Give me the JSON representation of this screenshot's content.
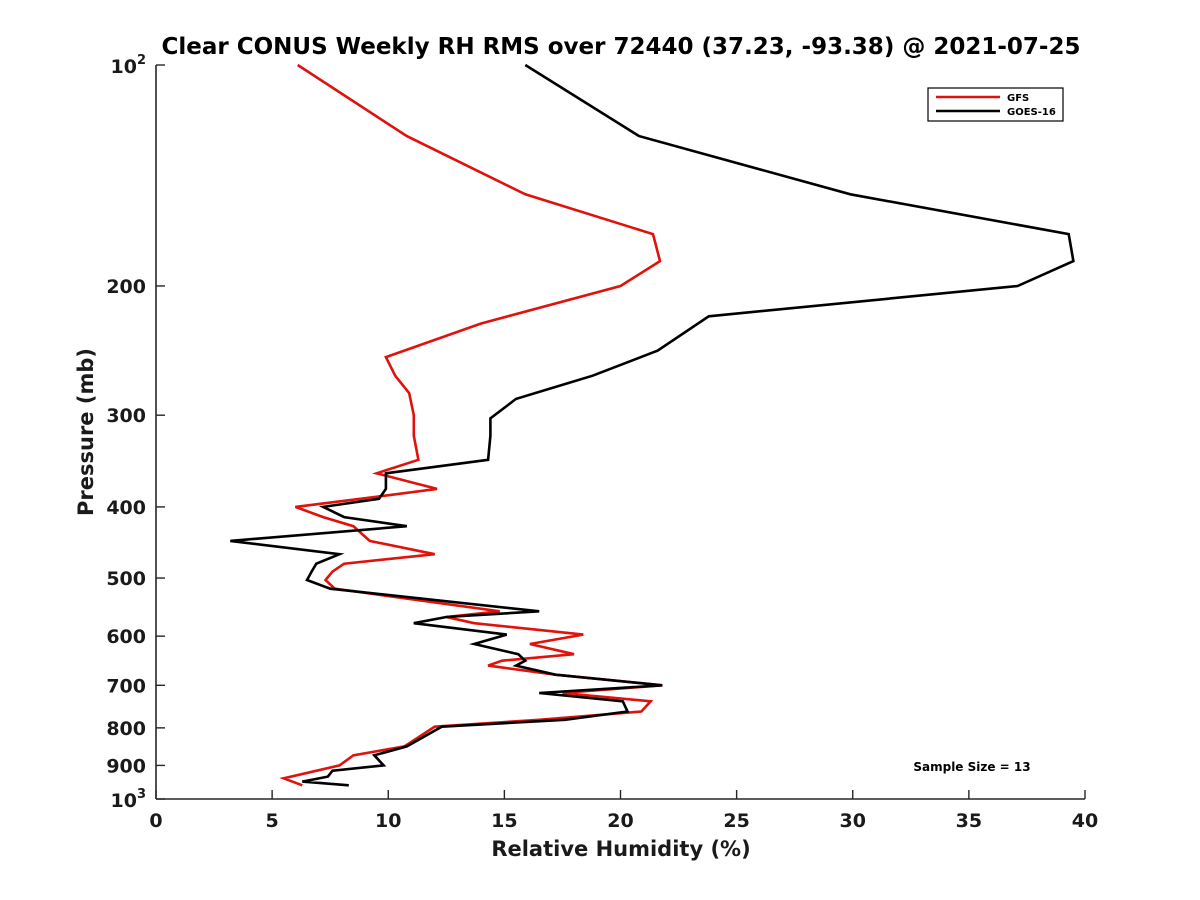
{
  "chart_data": {
    "type": "line",
    "title": "Clear CONUS Weekly RH RMS over 72440 (37.23, -93.38) @ 2021-07-25",
    "xlabel": "Relative Humidity (%)",
    "ylabel": "Pressure (mb)",
    "xlim": [
      0,
      40
    ],
    "ylim": [
      100,
      1000
    ],
    "y_scale": "log",
    "y_reversed": true,
    "x_ticks": [
      0,
      5,
      10,
      15,
      20,
      25,
      30,
      35,
      40
    ],
    "x_tick_labels": [
      "0",
      "5",
      "10",
      "15",
      "20",
      "25",
      "30",
      "35",
      "40"
    ],
    "y_ticks": [
      200,
      300,
      400,
      500,
      600,
      700,
      800,
      900
    ],
    "y_tick_labels": [
      "200",
      "300",
      "400",
      "500",
      "600",
      "700",
      "800",
      "900"
    ],
    "y_end_ticks": [
      {
        "value": 100,
        "base": "10",
        "exp": "2"
      },
      {
        "value": 1000,
        "base": "10",
        "exp": "3"
      }
    ],
    "grid": false,
    "legend_position": "top-right",
    "series": [
      {
        "name": "GFS",
        "color": "#e0120c",
        "points": [
          [
            6.1,
            100
          ],
          [
            10.8,
            125
          ],
          [
            15.9,
            150
          ],
          [
            21.4,
            170
          ],
          [
            21.7,
            185
          ],
          [
            20.0,
            200
          ],
          [
            14.0,
            225
          ],
          [
            9.9,
            250
          ],
          [
            10.3,
            265
          ],
          [
            10.9,
            280
          ],
          [
            11.1,
            300
          ],
          [
            11.1,
            320
          ],
          [
            11.3,
            345
          ],
          [
            9.5,
            360
          ],
          [
            12.1,
            378
          ],
          [
            8.8,
            390
          ],
          [
            6.0,
            400
          ],
          [
            7.2,
            413
          ],
          [
            8.5,
            425
          ],
          [
            9.2,
            445
          ],
          [
            12.0,
            464
          ],
          [
            8.1,
            478
          ],
          [
            7.6,
            490
          ],
          [
            7.3,
            503
          ],
          [
            7.7,
            517
          ],
          [
            14.8,
            555
          ],
          [
            12.5,
            565
          ],
          [
            13.7,
            576
          ],
          [
            18.4,
            597
          ],
          [
            16.1,
            615
          ],
          [
            18.0,
            635
          ],
          [
            14.9,
            648
          ],
          [
            14.3,
            658
          ],
          [
            17.2,
            677
          ],
          [
            21.8,
            700
          ],
          [
            17.5,
            717
          ],
          [
            21.3,
            736
          ],
          [
            20.9,
            760
          ],
          [
            16.5,
            780
          ],
          [
            12.0,
            797
          ],
          [
            10.7,
            848
          ],
          [
            8.5,
            872
          ],
          [
            7.9,
            900
          ],
          [
            5.5,
            937
          ],
          [
            6.3,
            958
          ]
        ]
      },
      {
        "name": "GOES-16",
        "color": "#000000",
        "points": [
          [
            15.9,
            100
          ],
          [
            20.8,
            125
          ],
          [
            29.9,
            150
          ],
          [
            39.3,
            170
          ],
          [
            39.5,
            185
          ],
          [
            37.1,
            200
          ],
          [
            23.8,
            220
          ],
          [
            21.6,
            245
          ],
          [
            18.8,
            265
          ],
          [
            15.5,
            285
          ],
          [
            14.4,
            303
          ],
          [
            14.4,
            320
          ],
          [
            14.3,
            345
          ],
          [
            9.9,
            360
          ],
          [
            9.9,
            378
          ],
          [
            9.6,
            390
          ],
          [
            7.2,
            400
          ],
          [
            8.1,
            413
          ],
          [
            10.8,
            425
          ],
          [
            3.2,
            445
          ],
          [
            7.9,
            464
          ],
          [
            6.9,
            478
          ],
          [
            6.7,
            490
          ],
          [
            6.5,
            503
          ],
          [
            7.5,
            517
          ],
          [
            16.5,
            555
          ],
          [
            12.5,
            565
          ],
          [
            11.1,
            576
          ],
          [
            15.1,
            597
          ],
          [
            13.7,
            615
          ],
          [
            15.6,
            635
          ],
          [
            15.9,
            648
          ],
          [
            15.5,
            658
          ],
          [
            17.2,
            677
          ],
          [
            21.8,
            700
          ],
          [
            16.5,
            717
          ],
          [
            20.1,
            736
          ],
          [
            20.3,
            760
          ],
          [
            17.6,
            780
          ],
          [
            12.3,
            797
          ],
          [
            10.8,
            848
          ],
          [
            9.4,
            872
          ],
          [
            9.8,
            900
          ],
          [
            7.6,
            915
          ],
          [
            7.4,
            932
          ],
          [
            6.3,
            947
          ],
          [
            8.3,
            958
          ]
        ]
      }
    ],
    "annotations": [
      {
        "text": "Sample Size = 13",
        "position": "bottom-right"
      }
    ]
  }
}
